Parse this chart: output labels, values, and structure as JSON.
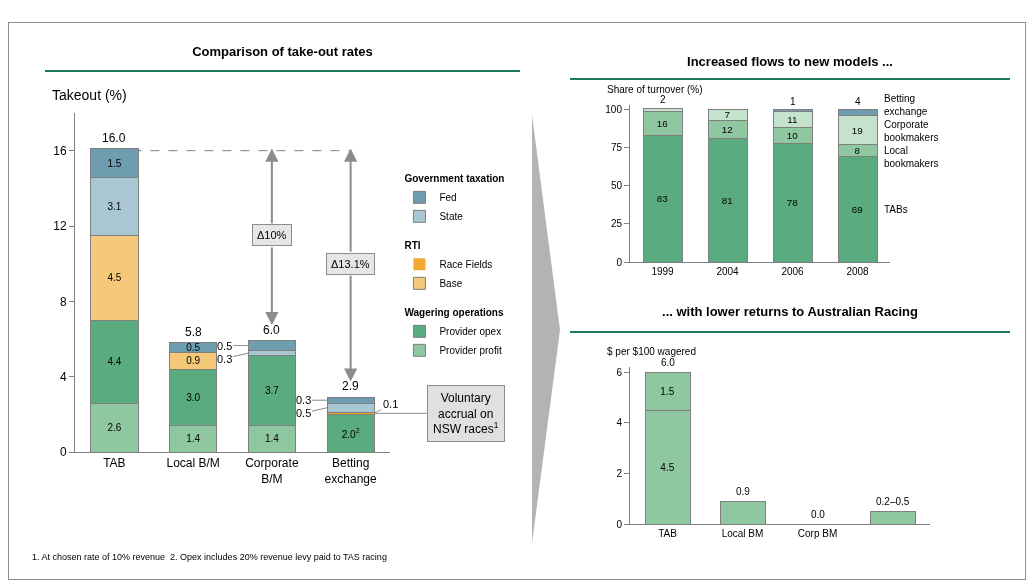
{
  "chart_data": [
    {
      "type": "bar",
      "title": "Comparison of take-out rates",
      "ylabel": "Takeout (%)",
      "categories": [
        "TAB",
        "Local B/M",
        "Corporate B/M",
        "Betting exchange"
      ],
      "stacked": true,
      "ylim": [
        0,
        18
      ],
      "yticks": [
        0,
        4,
        8,
        12,
        16
      ],
      "legend": "right",
      "series": [
        {
          "name": "Provider profit",
          "color": "#8fc8a0",
          "values": [
            2.6,
            1.4,
            1.4,
            null
          ],
          "value_labels": [
            "2.6",
            "1.4",
            "1.4",
            null
          ]
        },
        {
          "name": "Provider opex",
          "color": "#5aab80",
          "values": [
            4.4,
            3.0,
            3.7,
            2.0
          ],
          "value_labels": [
            "4.4",
            "3.0",
            "3.7",
            "2.0$^{2}$"
          ]
        },
        {
          "name": "Base",
          "color": "#f5c87a",
          "values": [
            4.5,
            0.9,
            null,
            null
          ],
          "value_labels": [
            "4.5",
            "0.9",
            null,
            null
          ]
        },
        {
          "name": "Race Fields",
          "color": "#f0a830",
          "values": [
            null,
            null,
            null,
            0.1
          ],
          "value_labels": [
            null,
            null,
            null,
            "0.1"
          ]
        },
        {
          "name": "State",
          "color": "#a9c6d3",
          "values": [
            3.1,
            null,
            0.3,
            0.5
          ],
          "value_labels": [
            "3.1",
            null,
            "0.3",
            "0.5"
          ]
        },
        {
          "name": "Fed",
          "color": "#6f9db0",
          "values": [
            1.5,
            0.5,
            0.5,
            0.3
          ],
          "value_labels": [
            "1.5",
            "0.5",
            "0.5",
            "0.3"
          ]
        }
      ],
      "totals": [
        "16.0",
        "5.8",
        "6.0",
        "2.9"
      ],
      "ref_lines": [
        {
          "axis": "y",
          "value": 16,
          "line_style": "dashed",
          "color": "#808080"
        }
      ],
      "annotations": [
        "Government taxation",
        "RTI",
        "Wagering operations",
        "Δ10%",
        "Δ13.1%",
        "Voluntary accrual on NSW races$^{1}$",
        "1. At chosen rate of 10% revenue  2. Opex includes 20% revenue levy paid to TAS racing"
      ]
    },
    {
      "type": "bar",
      "title": "Increased flows to new models ...",
      "ylabel": "Share of turnover (%)",
      "categories": [
        "1999",
        "2004",
        "2006",
        "2008"
      ],
      "stacked": true,
      "ylim": [
        0,
        103
      ],
      "yticks": [
        0,
        25,
        50,
        75,
        100
      ],
      "data_labels": true,
      "series": [
        {
          "name": "TABs",
          "color": "#5aab80",
          "values": [
            83,
            81,
            78,
            69
          ]
        },
        {
          "name": "Local bookmakers",
          "color": "#8fc8a0",
          "values": [
            16,
            12,
            10,
            8
          ]
        },
        {
          "name": "Corporate bookmakers",
          "color": "#c5e3cc",
          "values": [
            2,
            7,
            11,
            19
          ]
        },
        {
          "name": "Betting exchange",
          "color": "#6f9db0",
          "values": [
            null,
            null,
            1,
            4
          ]
        }
      ]
    },
    {
      "type": "bar",
      "title": "... with lower returns to Australian Racing",
      "ylabel": "$ per $100 wagered",
      "categories": [
        "TAB",
        "Local BM",
        "Corp BM",
        null
      ],
      "stacked": true,
      "ylim": [
        0,
        6.2
      ],
      "yticks": [
        0,
        2,
        4,
        6
      ],
      "series": [
        {
          "color": "#8fc8a0",
          "values": [
            4.5,
            0.9,
            0.0,
            0.5
          ],
          "value_labels": [
            "4.5",
            null,
            null,
            null
          ]
        },
        {
          "color": "#8fc8a0",
          "values": [
            1.5,
            null,
            null,
            null
          ],
          "value_labels": [
            "1.5",
            null,
            null,
            null
          ]
        }
      ],
      "totals": [
        "6.0",
        "0.9",
        "0.0",
        "0.2–0.5"
      ]
    }
  ]
}
